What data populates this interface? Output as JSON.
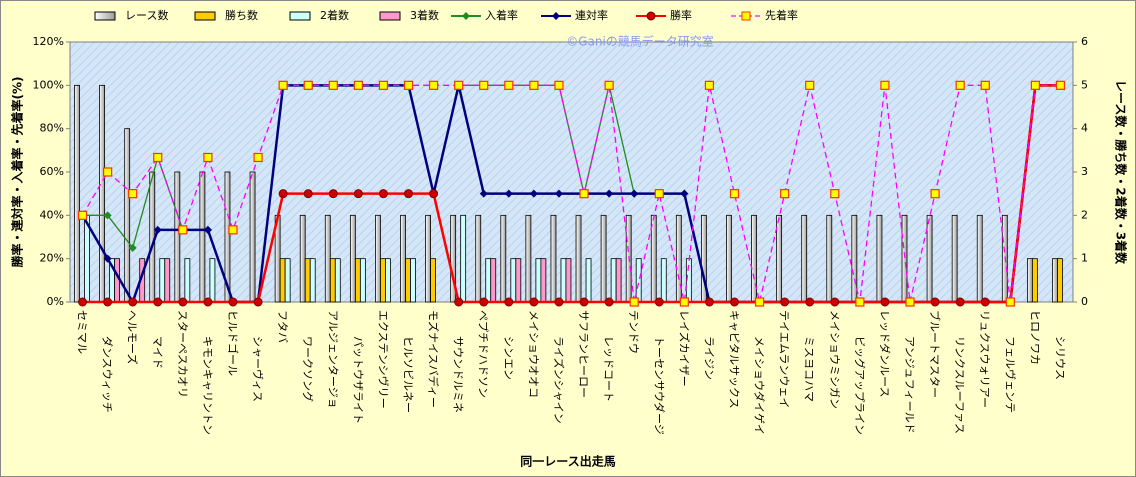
{
  "chart_data": {
    "type": "bar",
    "x_label": "同一レース出走馬",
    "y_label": "勝率・連対率・入着率・先着率(%)",
    "y2_label": "レース数・勝ち数・2着数・3着数",
    "watermark": "©Ganiの競馬データ研究室",
    "categories": [
      "セミマル",
      "ダンスウィッチ",
      "ヘルモーズ",
      "マイド",
      "スターペスカオリ",
      "キモンキャリントン",
      "ヒルドゴール",
      "シャーヴィス",
      "フタバ",
      "ワークソング",
      "アルジェンタージョ",
      "パットウザライト",
      "エクステンシヴリー",
      "ヒルソビルネー",
      "モズナイスバディー",
      "サウンドルミネ",
      "ペプチドハドソン",
      "シンエン",
      "メイショウオオコ",
      "ライズンシャイン",
      "サフランヒーロー",
      "レッドコート",
      "テンドウ",
      "トーセンサウダージ",
      "レイズカイザー",
      "ライジン",
      "キャピタルサックス",
      "メイショウダイゲイ",
      "テイエムランウェイ",
      "ミスヨコハマ",
      "メイショウミシガン",
      "ビッグアップライン",
      "レッドダンルース",
      "アンジュフィールド",
      "ブルートマスター",
      "リンクスルーファス",
      "リュクスウォリアー",
      "フェルヴェンテ",
      "ヒロノワカ",
      "シリウス"
    ],
    "ylim": [
      0,
      120
    ],
    "yticks": [
      {
        "value": 0,
        "label": "0%"
      },
      {
        "value": 20,
        "label": "20%"
      },
      {
        "value": 40,
        "label": "40%"
      },
      {
        "value": 60,
        "label": "60%"
      },
      {
        "value": 80,
        "label": "80%"
      },
      {
        "value": 100,
        "label": "100%"
      },
      {
        "value": 120,
        "label": "120%"
      }
    ],
    "y2lim": [
      0,
      6
    ],
    "y2ticks": [
      0,
      1,
      2,
      3,
      4,
      5,
      6
    ],
    "grid": false,
    "legend": "top",
    "series": [
      {
        "name": "レース数",
        "type": "bar",
        "axis": "y2",
        "color": "#f2f2f2",
        "values": [
          5,
          5,
          4,
          3,
          3,
          3,
          3,
          3,
          2,
          2,
          2,
          2,
          2,
          2,
          2,
          2,
          2,
          2,
          2,
          2,
          2,
          2,
          2,
          2,
          2,
          2,
          2,
          2,
          2,
          2,
          2,
          2,
          2,
          2,
          2,
          2,
          2,
          2,
          1,
          1
        ]
      },
      {
        "name": "勝ち数",
        "type": "bar",
        "axis": "y2",
        "color": "#ffcc00",
        "values": [
          0,
          0,
          0,
          0,
          0,
          0,
          0,
          0,
          1,
          1,
          1,
          1,
          1,
          1,
          1,
          0,
          0,
          0,
          0,
          0,
          0,
          0,
          0,
          0,
          0,
          0,
          0,
          0,
          0,
          0,
          0,
          0,
          0,
          0,
          0,
          0,
          0,
          0,
          1,
          1
        ]
      },
      {
        "name": "2着数",
        "type": "bar",
        "axis": "y2",
        "color": "#ccffff",
        "values": [
          2,
          1,
          0,
          1,
          1,
          1,
          0,
          0,
          1,
          1,
          1,
          1,
          1,
          1,
          0,
          2,
          1,
          1,
          1,
          1,
          1,
          1,
          1,
          1,
          1,
          0,
          0,
          0,
          0,
          0,
          0,
          0,
          0,
          0,
          0,
          0,
          0,
          0,
          0,
          0
        ]
      },
      {
        "name": "3着数",
        "type": "bar",
        "axis": "y2",
        "color": "#ff99cc",
        "values": [
          0,
          1,
          1,
          1,
          0,
          0,
          0,
          0,
          0,
          0,
          0,
          0,
          0,
          0,
          0,
          0,
          1,
          1,
          1,
          1,
          0,
          1,
          0,
          0,
          0,
          0,
          0,
          0,
          0,
          0,
          0,
          0,
          0,
          0,
          0,
          0,
          0,
          0,
          0,
          0
        ]
      },
      {
        "name": "入着率",
        "type": "line",
        "color": "#228b22",
        "marker": "diamond",
        "marker_color": "#228b22",
        "values": [
          40,
          40,
          25,
          66.7,
          33.3,
          33.3,
          0,
          0,
          100,
          100,
          100,
          100,
          100,
          100,
          50,
          100,
          100,
          100,
          100,
          100,
          50,
          100,
          50,
          50,
          50,
          0,
          0,
          0,
          0,
          0,
          0,
          0,
          0,
          0,
          0,
          0,
          0,
          0,
          100,
          100
        ]
      },
      {
        "name": "連対率",
        "type": "line",
        "color": "#000080",
        "marker": "diamond",
        "marker_color": "#000080",
        "values": [
          40,
          20,
          0,
          33.3,
          33.3,
          33.3,
          0,
          0,
          100,
          100,
          100,
          100,
          100,
          100,
          50,
          100,
          50,
          50,
          50,
          50,
          50,
          50,
          50,
          50,
          50,
          0,
          0,
          0,
          0,
          0,
          0,
          0,
          0,
          0,
          0,
          0,
          0,
          0,
          100,
          100
        ]
      },
      {
        "name": "勝率",
        "type": "line",
        "color": "#ff0000",
        "marker": "circle",
        "marker_color": "#cc0000",
        "values": [
          0,
          0,
          0,
          0,
          0,
          0,
          0,
          0,
          50,
          50,
          50,
          50,
          50,
          50,
          50,
          0,
          0,
          0,
          0,
          0,
          0,
          0,
          0,
          0,
          0,
          0,
          0,
          0,
          0,
          0,
          0,
          0,
          0,
          0,
          0,
          0,
          0,
          0,
          100,
          100
        ]
      },
      {
        "name": "先着率",
        "type": "line",
        "color": "#ff00ff",
        "marker": "square",
        "marker_color": "#ffff00",
        "dashed": true,
        "values": [
          40,
          60,
          50,
          66.7,
          33.3,
          66.7,
          33.3,
          66.7,
          100,
          100,
          100,
          100,
          100,
          100,
          100,
          100,
          100,
          100,
          100,
          100,
          50,
          100,
          0,
          50,
          0,
          100,
          50,
          0,
          50,
          100,
          50,
          0,
          100,
          0,
          50,
          100,
          100,
          0,
          100,
          100
        ]
      }
    ]
  }
}
